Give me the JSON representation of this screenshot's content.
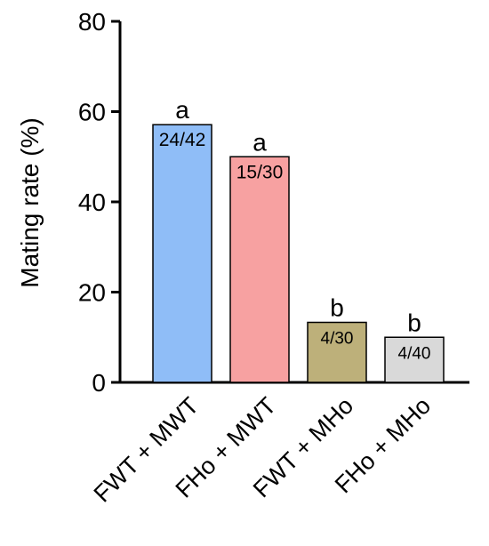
{
  "chart_data": {
    "type": "bar",
    "title": "",
    "xlabel": "",
    "ylabel": "Mating rate (%)",
    "ylim": [
      0,
      80
    ],
    "yticks": [
      0,
      20,
      40,
      60,
      80
    ],
    "grid": false,
    "legend": "none",
    "categories": [
      "FWT + MWT",
      "FHo + MWT",
      "FWT + MHo",
      "FHo + MHo"
    ],
    "values": [
      57.1,
      50.0,
      13.3,
      10.0
    ],
    "counts": [
      "24/42",
      "15/30",
      "4/30",
      "4/40"
    ],
    "significance_letters": [
      "a",
      "a",
      "b",
      "b"
    ],
    "colors": [
      "#8fbdf7",
      "#f7a1a1",
      "#bdb07a",
      "#d9d9d9"
    ]
  }
}
